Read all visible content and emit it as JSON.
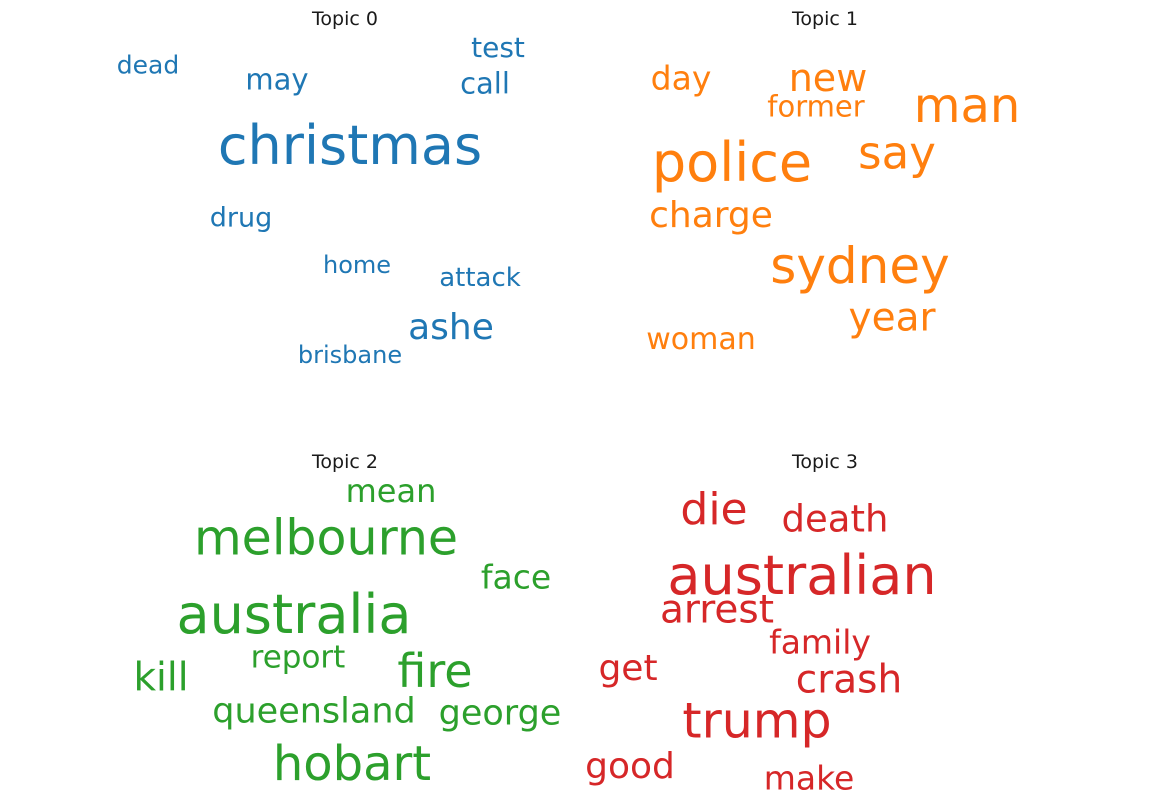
{
  "colors": {
    "topic_0": "#1f77b4",
    "topic_1": "#ff7f0e",
    "topic_2": "#2ca02c",
    "topic_3": "#d62728"
  },
  "chart_data": [
    {
      "type": "wordcloud",
      "title": "Topic 0",
      "color": "#1f77b4",
      "words": [
        {
          "text": "christmas",
          "weight": 1.0
        },
        {
          "text": "ashe",
          "weight": 0.66
        },
        {
          "text": "may",
          "weight": 0.54
        },
        {
          "text": "call",
          "weight": 0.53
        },
        {
          "text": "test",
          "weight": 0.52
        },
        {
          "text": "drug",
          "weight": 0.5
        },
        {
          "text": "attack",
          "weight": 0.48
        },
        {
          "text": "dead",
          "weight": 0.47
        },
        {
          "text": "home",
          "weight": 0.45
        },
        {
          "text": "brisbane",
          "weight": 0.44
        }
      ]
    },
    {
      "type": "wordcloud",
      "title": "Topic 1",
      "color": "#ff7f0e",
      "words": [
        {
          "text": "police",
          "weight": 1.0
        },
        {
          "text": "sydney",
          "weight": 0.92
        },
        {
          "text": "man",
          "weight": 0.88
        },
        {
          "text": "say",
          "weight": 0.84
        },
        {
          "text": "year",
          "weight": 0.72
        },
        {
          "text": "new",
          "weight": 0.7
        },
        {
          "text": "charge",
          "weight": 0.66
        },
        {
          "text": "day",
          "weight": 0.62
        },
        {
          "text": "woman",
          "weight": 0.56
        },
        {
          "text": "former",
          "weight": 0.54
        }
      ]
    },
    {
      "type": "wordcloud",
      "title": "Topic 2",
      "color": "#2ca02c",
      "words": [
        {
          "text": "australia",
          "weight": 1.0
        },
        {
          "text": "melbourne",
          "weight": 0.9
        },
        {
          "text": "hobart",
          "weight": 0.88
        },
        {
          "text": "fire",
          "weight": 0.86
        },
        {
          "text": "kill",
          "weight": 0.72
        },
        {
          "text": "queensland",
          "weight": 0.64
        },
        {
          "text": "george",
          "weight": 0.64
        },
        {
          "text": "face",
          "weight": 0.62
        },
        {
          "text": "mean",
          "weight": 0.6
        },
        {
          "text": "report",
          "weight": 0.58
        }
      ]
    },
    {
      "type": "wordcloud",
      "title": "Topic 3",
      "color": "#d62728",
      "words": [
        {
          "text": "australian",
          "weight": 1.0
        },
        {
          "text": "trump",
          "weight": 0.9
        },
        {
          "text": "die",
          "weight": 0.82
        },
        {
          "text": "crash",
          "weight": 0.72
        },
        {
          "text": "arrest",
          "weight": 0.72
        },
        {
          "text": "death",
          "weight": 0.68
        },
        {
          "text": "get",
          "weight": 0.66
        },
        {
          "text": "good",
          "weight": 0.66
        },
        {
          "text": "family",
          "weight": 0.62
        },
        {
          "text": "make",
          "weight": 0.62
        }
      ]
    }
  ]
}
